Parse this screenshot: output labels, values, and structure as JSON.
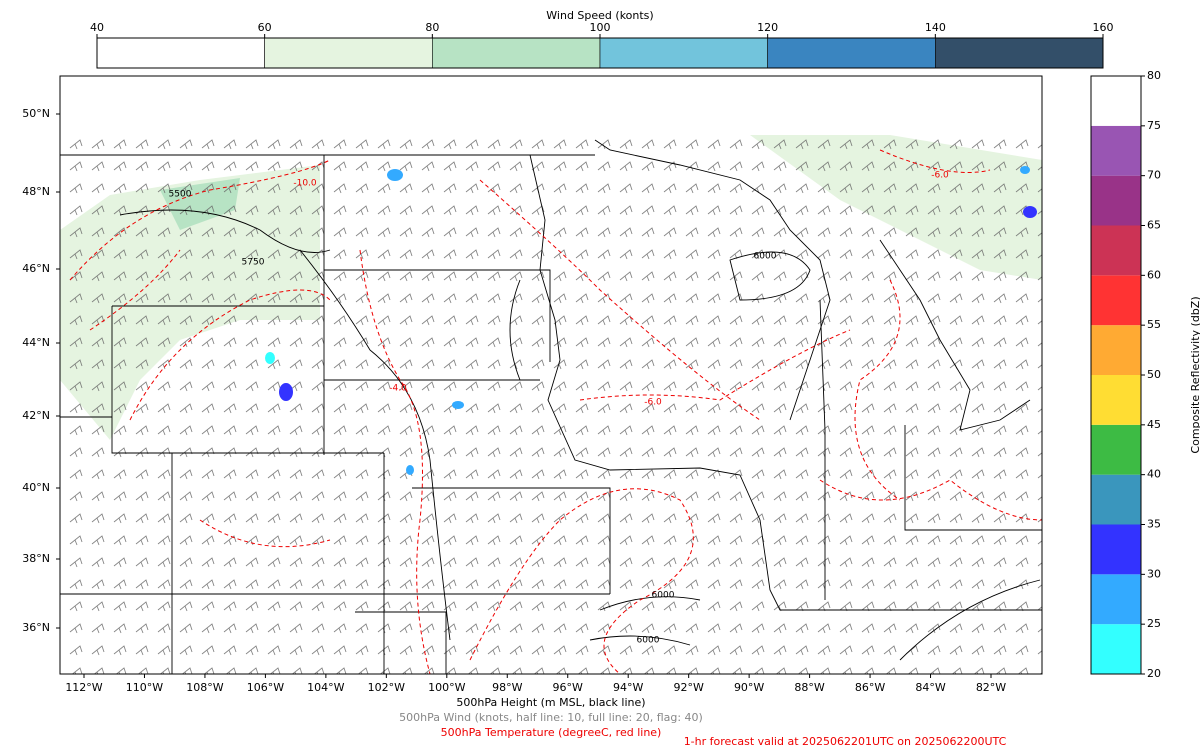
{
  "wind_colorbar": {
    "title": "Wind Speed (konts)",
    "ticks": [
      40,
      60,
      80,
      100,
      120,
      140,
      160
    ],
    "colors": [
      "#ffffff",
      "#e5f4e0",
      "#b7e3c4",
      "#72c4dc",
      "#3a85c0",
      "#334f69"
    ]
  },
  "reflectivity_colorbar": {
    "label": "Composite Reflectivity (dbZ)",
    "ticks": [
      20,
      25,
      30,
      35,
      40,
      45,
      50,
      55,
      60,
      65,
      70,
      75,
      80
    ],
    "colors": [
      "#33ffff",
      "#33aaff",
      "#3333ff",
      "#3a96bd",
      "#3dbb44",
      "#ffdd33",
      "#ffaa33",
      "#ff3333",
      "#cc3355",
      "#993388",
      "#9955b3",
      "#ffffff"
    ]
  },
  "map": {
    "lon_labels": [
      "112°W",
      "110°W",
      "108°W",
      "106°W",
      "104°W",
      "102°W",
      "100°W",
      "98°W",
      "96°W",
      "94°W",
      "92°W",
      "90°W",
      "88°W",
      "86°W",
      "84°W",
      "82°W"
    ],
    "lat_labels": [
      "50°N",
      "48°N",
      "46°N",
      "44°N",
      "42°N",
      "40°N",
      "38°N",
      "36°N"
    ],
    "contour_labels": [
      "5500",
      "5750",
      "6000",
      "6000",
      "6000",
      "-6.0",
      "-6.0",
      "-10.0",
      "-4.0"
    ]
  },
  "captions": {
    "height": "500hPa Height (m MSL, black line)",
    "wind": "500hPa Wind (knots, half line: 10, full line: 20, flag: 40)",
    "temperature": "500hPa Temperature (degreeC, red line)",
    "forecast": "1-hr forecast valid at 2025062201UTC on 2025062200UTC"
  }
}
